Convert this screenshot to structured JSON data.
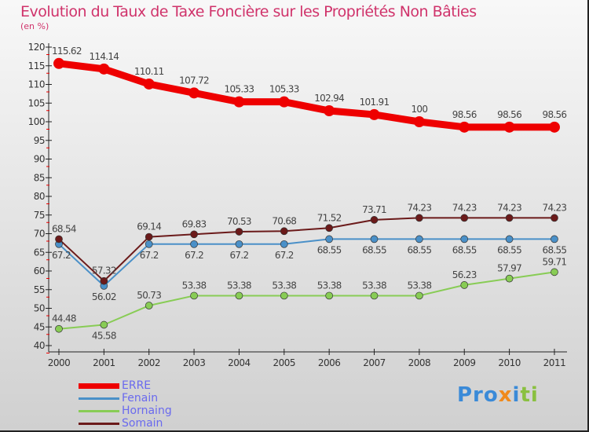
{
  "title": "Evolution du Taux de Taxe Foncière sur les Propriétés Non Bâties",
  "unit": "(en %)",
  "logo": "Proxiti",
  "chart_data": {
    "type": "line",
    "title": "Evolution du Taux de Taxe Foncière sur les Propriétés Non Bâties",
    "ylabel": "(en %)",
    "x": [
      "2000",
      "2001",
      "2002",
      "2003",
      "2004",
      "2005",
      "2006",
      "2007",
      "2008",
      "2009",
      "2010",
      "2011"
    ],
    "ylim": [
      40,
      120
    ],
    "yticks": [
      40,
      45,
      50,
      55,
      60,
      65,
      70,
      75,
      80,
      85,
      90,
      95,
      100,
      105,
      110,
      115,
      120
    ],
    "series": [
      {
        "name": "ERRE",
        "color": "#ee0000",
        "values": [
          115.62,
          114.14,
          110.11,
          107.72,
          105.33,
          105.33,
          102.94,
          101.91,
          100,
          98.56,
          98.56,
          98.56
        ]
      },
      {
        "name": "Fenain",
        "color": "#4a90c8",
        "values": [
          67.2,
          56.02,
          67.2,
          67.2,
          67.2,
          67.2,
          68.55,
          68.55,
          68.55,
          68.55,
          68.55,
          68.55
        ]
      },
      {
        "name": "Hornaing",
        "color": "#88cc55",
        "values": [
          44.48,
          45.58,
          50.73,
          53.38,
          53.38,
          53.38,
          53.38,
          53.38,
          53.38,
          56.23,
          57.97,
          59.71
        ]
      },
      {
        "name": "Somain",
        "color": "#6b1a1a",
        "values": [
          68.54,
          57.32,
          69.14,
          69.83,
          70.53,
          70.68,
          71.52,
          73.71,
          74.23,
          74.23,
          74.23,
          74.23
        ]
      }
    ],
    "legend_position": "bottom-left"
  }
}
